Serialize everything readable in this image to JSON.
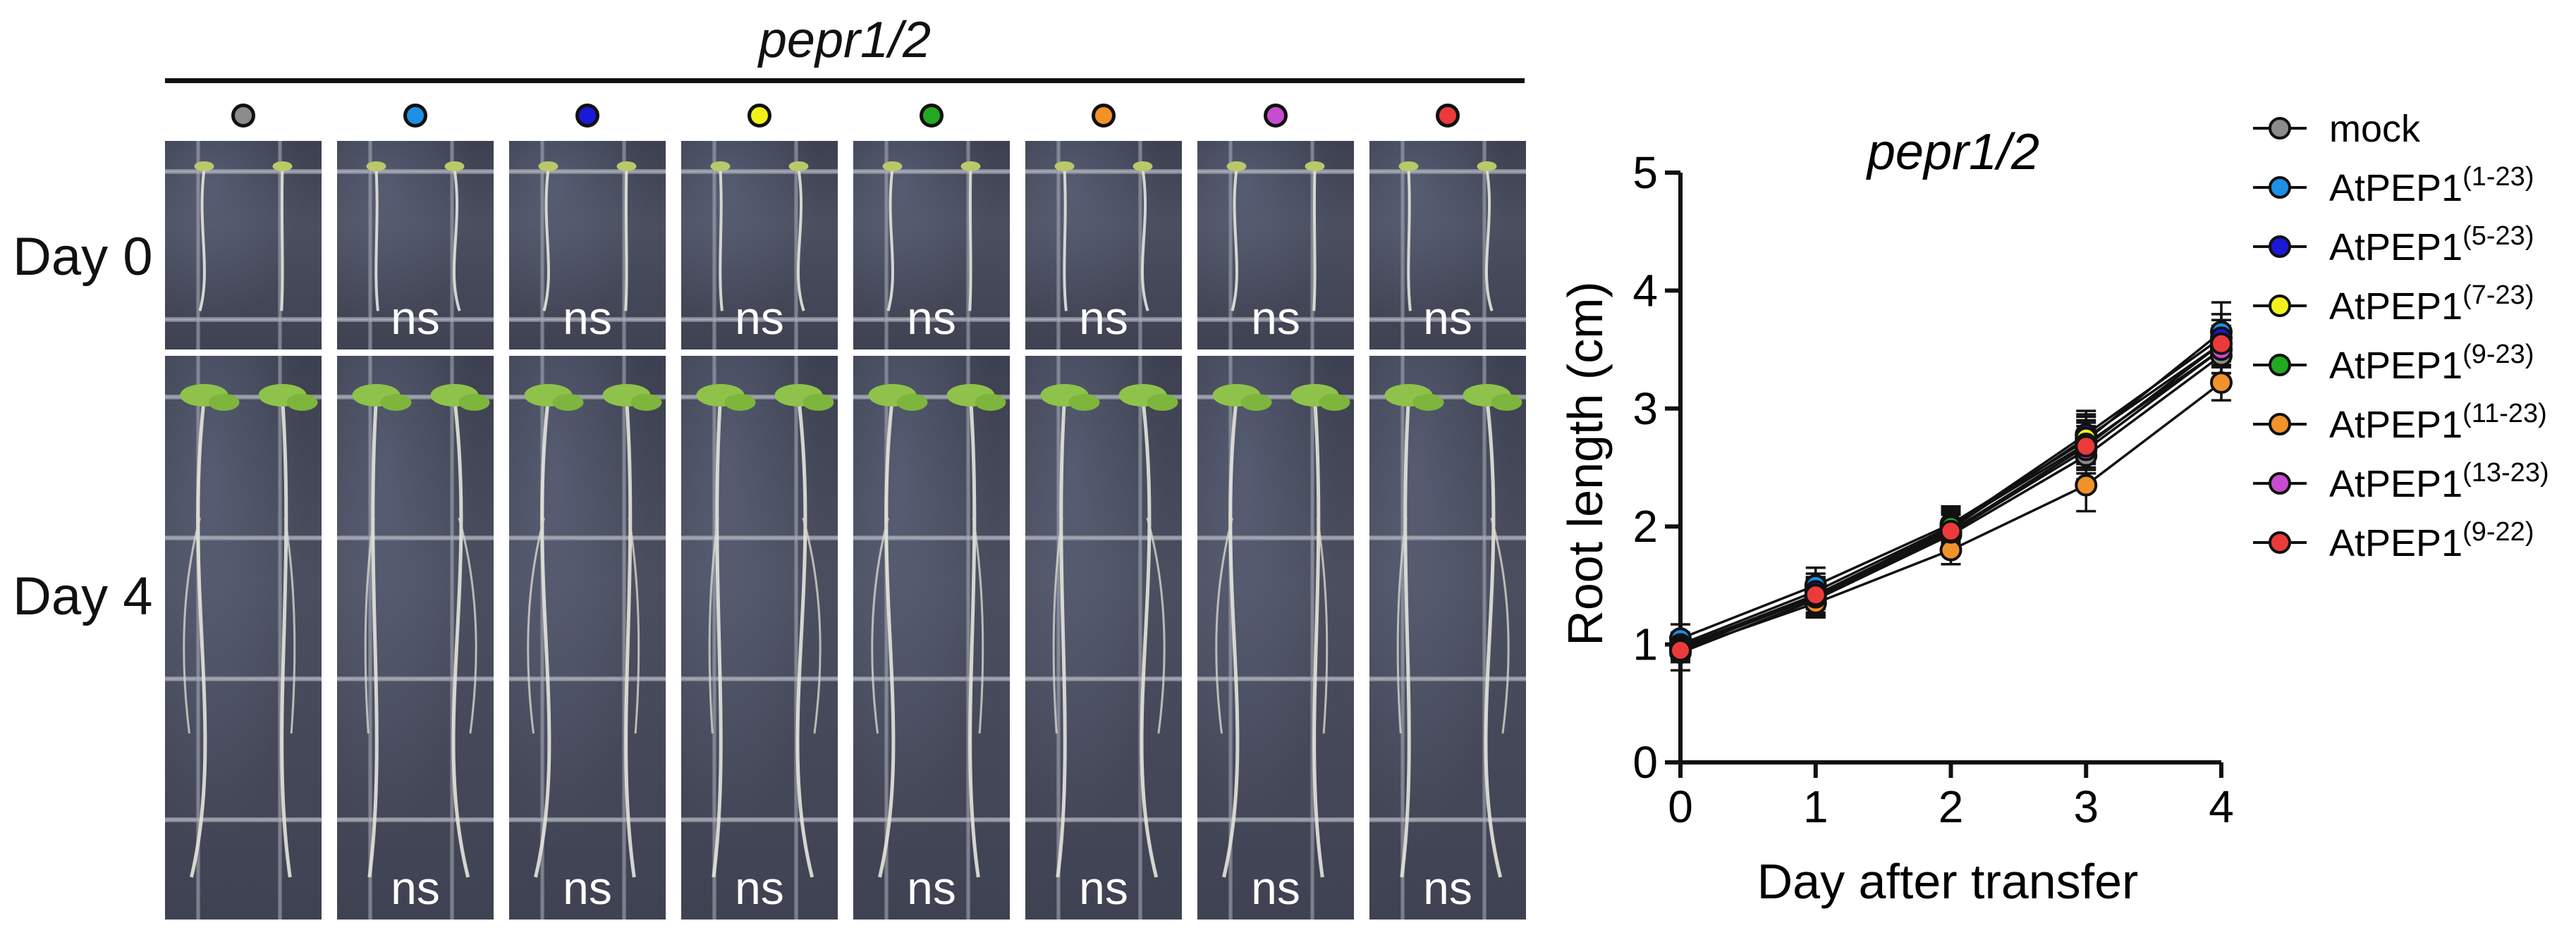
{
  "figure": {
    "genotype_title": "pepr1/2",
    "row_labels": {
      "day0": "Day 0",
      "day4": "Day 4"
    },
    "panel_columns": [
      {
        "treatment": "mock",
        "color": "#8c8c8c",
        "day0_stat": "",
        "day4_stat": ""
      },
      {
        "treatment": "AtPEP1(1-23)",
        "color": "#1e90e6",
        "day0_stat": "ns",
        "day4_stat": "ns"
      },
      {
        "treatment": "AtPEP1(5-23)",
        "color": "#1a1ad6",
        "day0_stat": "ns",
        "day4_stat": "ns"
      },
      {
        "treatment": "AtPEP1(7-23)",
        "color": "#f2f21a",
        "day0_stat": "ns",
        "day4_stat": "ns"
      },
      {
        "treatment": "AtPEP1(9-23)",
        "color": "#22aa22",
        "day0_stat": "ns",
        "day4_stat": "ns"
      },
      {
        "treatment": "AtPEP1(11-23)",
        "color": "#f2922a",
        "day0_stat": "ns",
        "day4_stat": "ns"
      },
      {
        "treatment": "AtPEP1(13-23)",
        "color": "#c84cd0",
        "day0_stat": "ns",
        "day4_stat": "ns"
      },
      {
        "treatment": "AtPEP1(9-22)",
        "color": "#ec3a3a",
        "day0_stat": "ns",
        "day4_stat": "ns"
      }
    ]
  },
  "chart_data": {
    "type": "line",
    "title": "pepr1/2",
    "xlabel": "Day after transfer",
    "ylabel": "Root length (cm)",
    "x": [
      0,
      1,
      2,
      3,
      4
    ],
    "xticks": [
      "0",
      "1",
      "2",
      "3",
      "4"
    ],
    "yticks": [
      "0",
      "1",
      "2",
      "3",
      "4",
      "5"
    ],
    "xlim": [
      0,
      4
    ],
    "ylim": [
      0,
      5
    ],
    "grid": false,
    "legend_position": "right",
    "error_bars": "sd",
    "series": [
      {
        "name": "mock",
        "base": "AtPEP1",
        "range": "",
        "color": "#8c8c8c",
        "values": [
          0.93,
          1.38,
          1.93,
          2.6,
          3.45
        ],
        "err": [
          0.15,
          0.15,
          0.12,
          0.2,
          0.2
        ]
      },
      {
        "name": "AtPEP1(1-23)",
        "base": "AtPEP1",
        "range": "(1-23)",
        "color": "#1e90e6",
        "values": [
          1.05,
          1.5,
          2.02,
          2.73,
          3.65
        ],
        "err": [
          0.12,
          0.15,
          0.15,
          0.2,
          0.25
        ]
      },
      {
        "name": "AtPEP1(5-23)",
        "base": "AtPEP1",
        "range": "(5-23)",
        "color": "#1a1ad6",
        "values": [
          1.0,
          1.45,
          2.0,
          2.78,
          3.6
        ],
        "err": [
          0.1,
          0.15,
          0.15,
          0.2,
          0.2
        ]
      },
      {
        "name": "AtPEP1(7-23)",
        "base": "AtPEP1",
        "range": "(7-23)",
        "color": "#f2f21a",
        "values": [
          0.98,
          1.42,
          1.98,
          2.75,
          3.55
        ],
        "err": [
          0.1,
          0.15,
          0.15,
          0.2,
          0.2
        ]
      },
      {
        "name": "AtPEP1(9-23)",
        "base": "AtPEP1",
        "range": "(9-23)",
        "color": "#22aa22",
        "values": [
          0.97,
          1.4,
          2.0,
          2.7,
          3.5
        ],
        "err": [
          0.1,
          0.15,
          0.15,
          0.2,
          0.2
        ]
      },
      {
        "name": "AtPEP1(11-23)",
        "base": "AtPEP1",
        "range": "(11-23)",
        "color": "#f2922a",
        "values": [
          0.95,
          1.35,
          1.8,
          2.35,
          3.22
        ],
        "err": [
          0.1,
          0.12,
          0.12,
          0.22,
          0.15
        ]
      },
      {
        "name": "AtPEP1(13-23)",
        "base": "AtPEP1",
        "range": "(13-23)",
        "color": "#c84cd0",
        "values": [
          0.96,
          1.4,
          1.95,
          2.65,
          3.5
        ],
        "err": [
          0.1,
          0.15,
          0.15,
          0.2,
          0.2
        ]
      },
      {
        "name": "AtPEP1(9-22)",
        "base": "AtPEP1",
        "range": "(9-22)",
        "color": "#ec3a3a",
        "values": [
          0.95,
          1.42,
          1.96,
          2.68,
          3.55
        ],
        "err": [
          0.1,
          0.15,
          0.15,
          0.2,
          0.2
        ]
      }
    ]
  }
}
